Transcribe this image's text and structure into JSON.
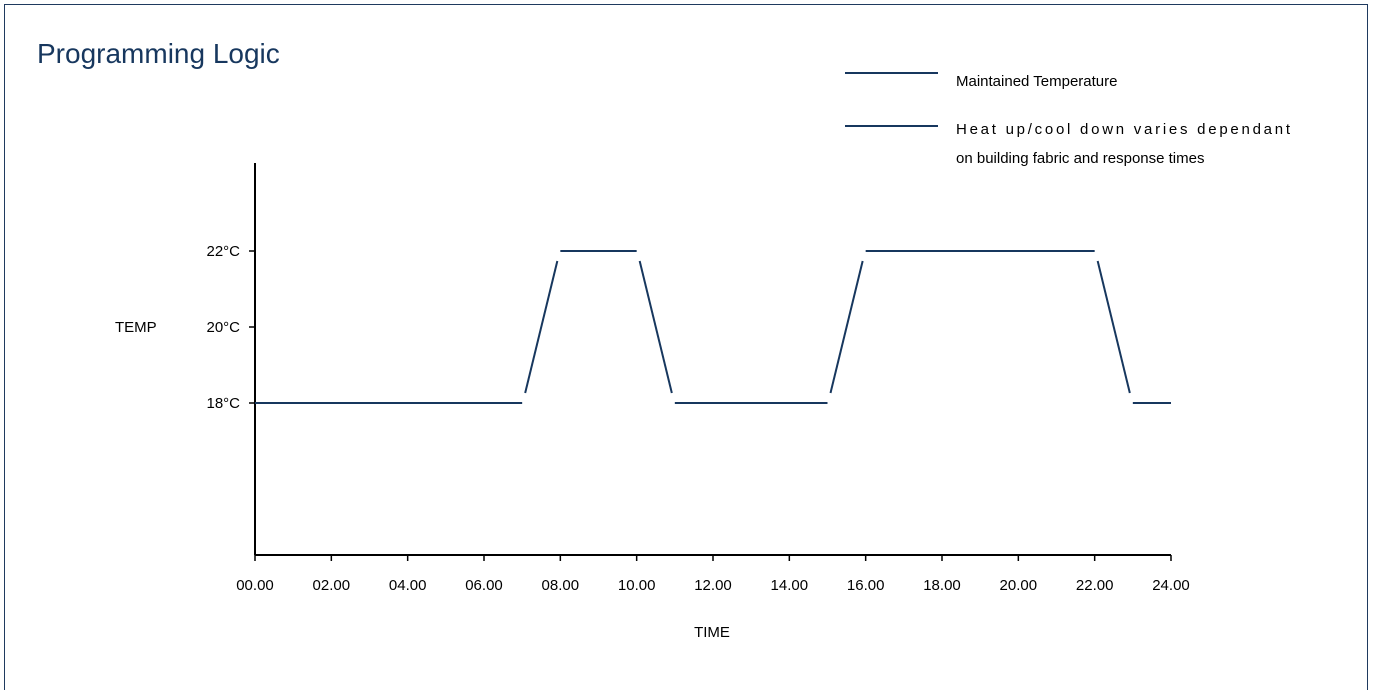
{
  "chart_data": {
    "type": "line",
    "title": "Programming Logic",
    "xlabel": "TIME",
    "ylabel": "TEMP",
    "x_ticks": [
      "00.00",
      "02.00",
      "04.00",
      "06.00",
      "08.00",
      "10.00",
      "12.00",
      "14.00",
      "16.00",
      "18.00",
      "20.00",
      "22.00",
      "24.00"
    ],
    "xlim": [
      0,
      24
    ],
    "y_ticks": [
      {
        "value": 18,
        "label": "18°C"
      },
      {
        "value": 20,
        "label": "20°C"
      },
      {
        "value": 22,
        "label": "22°C"
      }
    ],
    "ylim": [
      14,
      26
    ],
    "grid": false,
    "legend_position": "top-right",
    "legend": [
      {
        "label": "Maintained Temperature"
      },
      {
        "label_lines": [
          "Heat up/cool down varies dependant",
          "on building fabric and response times"
        ]
      }
    ],
    "line_color": "#17375e",
    "segments": [
      {
        "kind": "maintained",
        "points": [
          [
            0,
            18
          ],
          [
            7,
            18
          ]
        ]
      },
      {
        "kind": "transition",
        "points": [
          [
            7,
            18
          ],
          [
            8,
            22
          ]
        ]
      },
      {
        "kind": "maintained",
        "points": [
          [
            8,
            22
          ],
          [
            10,
            22
          ]
        ]
      },
      {
        "kind": "transition",
        "points": [
          [
            10,
            22
          ],
          [
            11,
            18
          ]
        ]
      },
      {
        "kind": "maintained",
        "points": [
          [
            11,
            18
          ],
          [
            15,
            18
          ]
        ]
      },
      {
        "kind": "transition",
        "points": [
          [
            15,
            18
          ],
          [
            16,
            22
          ]
        ]
      },
      {
        "kind": "maintained",
        "points": [
          [
            16,
            22
          ],
          [
            22,
            22
          ]
        ]
      },
      {
        "kind": "transition",
        "points": [
          [
            22,
            22
          ],
          [
            23,
            18
          ]
        ]
      },
      {
        "kind": "maintained",
        "points": [
          [
            23,
            18
          ],
          [
            24,
            18
          ]
        ]
      }
    ]
  }
}
